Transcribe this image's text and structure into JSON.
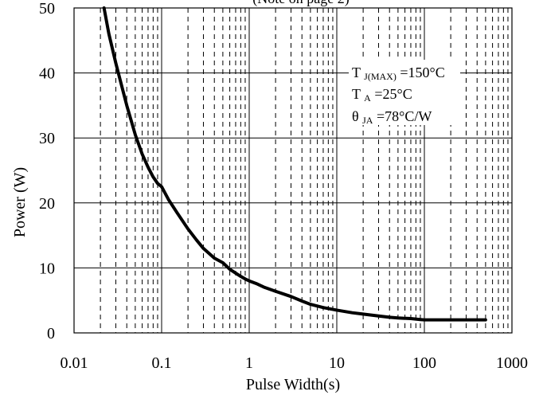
{
  "chart_data": {
    "type": "line",
    "title": "(Note on page 2)",
    "xlabel": "Pulse Width(s)",
    "ylabel": "Power (W)",
    "x_scale": "log",
    "xlim": [
      0.01,
      1000
    ],
    "ylim": [
      0,
      50
    ],
    "x_ticks": [
      0.01,
      0.1,
      1,
      10,
      100,
      1000
    ],
    "x_tick_labels": [
      "0.01",
      "0.1",
      "1",
      "10",
      "100",
      "1000"
    ],
    "y_ticks": [
      0,
      10,
      20,
      30,
      40,
      50
    ],
    "y_tick_labels": [
      "0",
      "10",
      "20",
      "30",
      "40",
      "50"
    ],
    "grid": {
      "x_major": "solid",
      "x_minor": "dashed",
      "y_major": "solid"
    },
    "series": [
      {
        "color": "#000000",
        "x": [
          0.022,
          0.025,
          0.03,
          0.035,
          0.04,
          0.05,
          0.06,
          0.07,
          0.08,
          0.09,
          0.1,
          0.12,
          0.15,
          0.2,
          0.25,
          0.3,
          0.4,
          0.5,
          0.6,
          0.7,
          0.8,
          0.9,
          1,
          1.2,
          1.5,
          2,
          3,
          4,
          5,
          7,
          10,
          15,
          20,
          30,
          40,
          50,
          70,
          90,
          100,
          200,
          300,
          500
        ],
        "y": [
          50,
          46,
          41.5,
          38,
          35,
          30.5,
          27.5,
          25.5,
          24,
          23,
          22.5,
          20.5,
          18.5,
          16,
          14.3,
          13,
          11.5,
          10.8,
          9.8,
          9.2,
          8.7,
          8.3,
          8,
          7.6,
          7,
          6.4,
          5.6,
          4.9,
          4.4,
          3.9,
          3.5,
          3.1,
          2.9,
          2.6,
          2.4,
          2.3,
          2.2,
          2.05,
          2.0,
          2.0,
          2.0,
          2.0
        ]
      }
    ],
    "annotation": {
      "line1": "T",
      "line1_sub": "J(MAX)",
      "line1_rest": "=150°C",
      "line2": "T",
      "line2_sub": "A",
      "line2_rest": "=25°C",
      "line3": "θ",
      "line3_sub": "JA",
      "line3_rest": "=78°C/W"
    }
  }
}
